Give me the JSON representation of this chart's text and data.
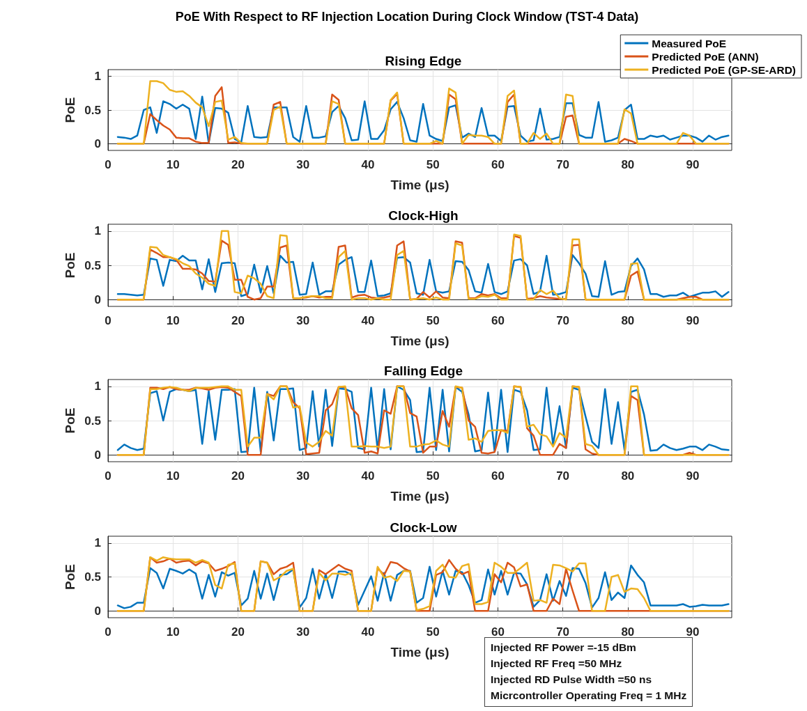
{
  "chart_data": [
    {
      "type": "line",
      "title": "PoE With Respect to RF Injection Location During Clock Window (TST-4 Data)",
      "subtitle": "Rising Edge",
      "xlabel": "Time (μs)",
      "ylabel": "PoE",
      "xlim": [
        0,
        96
      ],
      "xticks": [
        0,
        10,
        20,
        30,
        40,
        50,
        60,
        70,
        80,
        90
      ],
      "ylim": [
        -0.1,
        1.1
      ],
      "yticks": [
        0,
        0.5,
        1
      ],
      "grid": true,
      "legend": "top right",
      "x": [
        1.5,
        2.5,
        3.5,
        4.5,
        5.5,
        6.5,
        7.5,
        8.5,
        9.5,
        10.5,
        11.5,
        12.5,
        13.5,
        14.5,
        15.5,
        16.5,
        17.5,
        18.5,
        19.5,
        20.5,
        21.5,
        22.5,
        23.5,
        24.5,
        25.5,
        26.5,
        27.5,
        28.5,
        29.5,
        30.5,
        31.5,
        32.5,
        33.5,
        34.5,
        35.5,
        36.5,
        37.5,
        38.5,
        39.5,
        40.5,
        41.5,
        42.5,
        43.5,
        44.5,
        45.5,
        46.5,
        47.5,
        48.5,
        49.5,
        50.5,
        51.5,
        52.5,
        53.5,
        54.5,
        55.5,
        56.5,
        57.5,
        58.5,
        59.5,
        60.5,
        61.5,
        62.5,
        63.5,
        64.5,
        65.5,
        66.5,
        67.5,
        68.5,
        69.5,
        70.5,
        71.5,
        72.5,
        73.5,
        74.5,
        75.5,
        76.5,
        77.5,
        78.5,
        79.5,
        80.5,
        81.5,
        82.5,
        83.5,
        84.5,
        85.5,
        86.5,
        87.5,
        88.5,
        89.5,
        90.5,
        91.5,
        92.5,
        93.5,
        94.5,
        95.5
      ],
      "series": [
        {
          "name": "Measured PoE",
          "color": "#0072bd",
          "values": [
            0.1,
            0.09,
            0.07,
            0.12,
            0.5,
            0.54,
            0.16,
            0.63,
            0.59,
            0.52,
            0.58,
            0.52,
            0.07,
            0.7,
            0.01,
            0.53,
            0.52,
            0.46,
            0.07,
            0.02,
            0.56,
            0.1,
            0.09,
            0.1,
            0.54,
            0.54,
            0.54,
            0.1,
            0.03,
            0.56,
            0.09,
            0.09,
            0.11,
            0.47,
            0.56,
            0.38,
            0.05,
            0.06,
            0.63,
            0.07,
            0.07,
            0.2,
            0.51,
            0.62,
            0.38,
            0.05,
            0.03,
            0.59,
            0.12,
            0.07,
            0.04,
            0.54,
            0.57,
            0.09,
            0.15,
            0.1,
            0.53,
            0.12,
            0.12,
            0.04,
            0.55,
            0.56,
            0.12,
            0.03,
            0.05,
            0.52,
            0.06,
            0.07,
            0.1,
            0.6,
            0.6,
            0.13,
            0.09,
            0.09,
            0.62,
            0.03,
            0.05,
            0.09,
            0.5,
            0.58,
            0.07,
            0.07,
            0.12,
            0.1,
            0.12,
            0.06,
            0.09,
            0.12,
            0.12,
            0.09,
            0.03,
            0.12,
            0.06,
            0.1,
            0.12
          ]
        },
        {
          "name": "Predicted PoE (ANN)",
          "color": "#d95319",
          "values": [
            0,
            0,
            0,
            0,
            0,
            0.44,
            0.35,
            0.27,
            0.21,
            0.09,
            0.08,
            0.08,
            0.03,
            0.01,
            0.01,
            0.71,
            0.84,
            0.01,
            0.02,
            0,
            0,
            0,
            0,
            0,
            0.58,
            0.62,
            0,
            0,
            0,
            0,
            0,
            0,
            0,
            0.73,
            0.65,
            0,
            0,
            0,
            0,
            0,
            0,
            0,
            0.64,
            0.74,
            0,
            0,
            0,
            0,
            0,
            0,
            0,
            0.73,
            0.66,
            0,
            0,
            0,
            0,
            0,
            0,
            0,
            0.62,
            0.73,
            0,
            0,
            0,
            0,
            0,
            0,
            0,
            0.4,
            0.42,
            0,
            0,
            0,
            0,
            0,
            0,
            0,
            0.07,
            0.04,
            0,
            0,
            0,
            0,
            0,
            0,
            0,
            0,
            0,
            0,
            0,
            0,
            0,
            0,
            0
          ]
        },
        {
          "name": "Predicted PoE (GP-SE-ARD)",
          "color": "#edb120",
          "values": [
            0,
            0,
            0,
            0,
            0,
            0.93,
            0.93,
            0.9,
            0.8,
            0.77,
            0.78,
            0.71,
            0.61,
            0.54,
            0.26,
            0.62,
            0.64,
            0.06,
            0.1,
            0.01,
            0,
            0,
            0,
            0,
            0.5,
            0.55,
            0,
            0,
            0,
            0,
            0,
            0,
            0,
            0.63,
            0.59,
            0,
            0,
            0,
            0,
            0,
            0,
            0,
            0.65,
            0.76,
            0,
            0,
            0,
            0,
            0,
            0.04,
            0,
            0.82,
            0.76,
            0,
            0.13,
            0.12,
            0.12,
            0.1,
            0,
            0,
            0.71,
            0.79,
            0,
            0,
            0.16,
            0.07,
            0.15,
            0,
            0,
            0.73,
            0.71,
            0,
            0,
            0,
            0,
            0,
            0,
            0,
            0.51,
            0.45,
            0,
            0,
            0,
            0,
            0,
            0,
            0,
            0.16,
            0.12,
            0,
            0,
            0,
            0,
            0,
            0
          ]
        }
      ]
    },
    {
      "type": "line",
      "subtitle": "Clock-High",
      "xlabel": "Time (μs)",
      "ylabel": "PoE",
      "xlim": [
        0,
        96
      ],
      "xticks": [
        0,
        10,
        20,
        30,
        40,
        50,
        60,
        70,
        80,
        90
      ],
      "ylim": [
        -0.1,
        1.1
      ],
      "yticks": [
        0,
        0.5,
        1
      ],
      "grid": true,
      "x": [
        1.5,
        2.5,
        3.5,
        4.5,
        5.5,
        6.5,
        7.5,
        8.5,
        9.5,
        10.5,
        11.5,
        12.5,
        13.5,
        14.5,
        15.5,
        16.5,
        17.5,
        18.5,
        19.5,
        20.5,
        21.5,
        22.5,
        23.5,
        24.5,
        25.5,
        26.5,
        27.5,
        28.5,
        29.5,
        30.5,
        31.5,
        32.5,
        33.5,
        34.5,
        35.5,
        36.5,
        37.5,
        38.5,
        39.5,
        40.5,
        41.5,
        42.5,
        43.5,
        44.5,
        45.5,
        46.5,
        47.5,
        48.5,
        49.5,
        50.5,
        51.5,
        52.5,
        53.5,
        54.5,
        55.5,
        56.5,
        57.5,
        58.5,
        59.5,
        60.5,
        61.5,
        62.5,
        63.5,
        64.5,
        65.5,
        66.5,
        67.5,
        68.5,
        69.5,
        70.5,
        71.5,
        72.5,
        73.5,
        74.5,
        75.5,
        76.5,
        77.5,
        78.5,
        79.5,
        80.5,
        81.5,
        82.5,
        83.5,
        84.5,
        85.5,
        86.5,
        87.5,
        88.5,
        89.5,
        90.5,
        91.5,
        92.5,
        93.5,
        94.5,
        95.5
      ],
      "series": [
        {
          "color": "#0072bd",
          "values": [
            0.08,
            0.08,
            0.07,
            0.06,
            0.07,
            0.6,
            0.58,
            0.2,
            0.58,
            0.56,
            0.64,
            0.57,
            0.57,
            0.15,
            0.59,
            0.11,
            0.53,
            0.54,
            0.53,
            0.05,
            0.08,
            0.51,
            0.1,
            0.49,
            0.09,
            0.64,
            0.54,
            0.55,
            0.07,
            0.08,
            0.54,
            0.07,
            0.12,
            0.12,
            0.51,
            0.58,
            0.62,
            0.11,
            0.11,
            0.57,
            0.05,
            0.06,
            0.09,
            0.61,
            0.62,
            0.54,
            0.09,
            0.07,
            0.58,
            0.12,
            0.1,
            0.12,
            0.56,
            0.55,
            0.43,
            0.12,
            0.1,
            0.52,
            0.11,
            0.08,
            0.12,
            0.57,
            0.59,
            0.5,
            0.08,
            0.12,
            0.64,
            0.07,
            0.08,
            0.11,
            0.65,
            0.53,
            0.38,
            0.05,
            0.04,
            0.56,
            0.07,
            0.11,
            0.12,
            0.49,
            0.6,
            0.44,
            0.08,
            0.08,
            0.04,
            0.06,
            0.06,
            0.1,
            0.04,
            0.07,
            0.1,
            0.1,
            0.12,
            0.04,
            0.11
          ]
        },
        {
          "color": "#d95319",
          "values": [
            0,
            0,
            0,
            0,
            0,
            0.73,
            0.68,
            0.62,
            0.62,
            0.58,
            0.45,
            0.45,
            0.44,
            0.38,
            0.27,
            0.26,
            0.86,
            0.8,
            0.29,
            0.29,
            0.04,
            0,
            0.02,
            0.19,
            0.19,
            0.76,
            0.79,
            0.02,
            0.02,
            0.03,
            0.05,
            0.03,
            0.04,
            0.04,
            0.77,
            0.79,
            0.03,
            0.06,
            0.07,
            0.03,
            0.02,
            0.03,
            0.05,
            0.79,
            0.85,
            0,
            0.01,
            0.11,
            0.03,
            0.12,
            0.03,
            0.02,
            0.85,
            0.83,
            0.02,
            0.02,
            0.08,
            0.06,
            0.08,
            0.02,
            0.02,
            0.93,
            0.9,
            0.01,
            0.02,
            0.05,
            0.03,
            0.02,
            0.01,
            0.01,
            0.79,
            0.8,
            0,
            0,
            0,
            0,
            0,
            0,
            0,
            0.35,
            0.41,
            0,
            0,
            0,
            0,
            0,
            0,
            0.02,
            0.04,
            0.04,
            0,
            0,
            0,
            0,
            0
          ]
        },
        {
          "color": "#edb120",
          "values": [
            0,
            0,
            0,
            0,
            0,
            0.77,
            0.76,
            0.65,
            0.62,
            0.59,
            0.53,
            0.49,
            0.38,
            0.32,
            0.23,
            0.2,
            1,
            1,
            0.11,
            0.09,
            0.35,
            0.31,
            0.23,
            0.05,
            0.02,
            0.94,
            0.93,
            0.02,
            0.02,
            0.04,
            0.05,
            0.05,
            0.02,
            0.02,
            0.62,
            0.71,
            0,
            0.02,
            0.02,
            0,
            0.02,
            0,
            0,
            0.65,
            0.71,
            0,
            0.01,
            0.02,
            0,
            0.03,
            0,
            0,
            0.82,
            0.79,
            0.01,
            0.01,
            0.05,
            0.04,
            0.07,
            0,
            0,
            0.95,
            0.93,
            0,
            0,
            0.14,
            0.08,
            0.13,
            0.02,
            0,
            0.88,
            0.88,
            0,
            0,
            0,
            0,
            0,
            0,
            0,
            0.52,
            0.53,
            0,
            0,
            0,
            0,
            0,
            0,
            0,
            0,
            0,
            0,
            0,
            0,
            0,
            0
          ]
        }
      ]
    },
    {
      "type": "line",
      "subtitle": "Falling Edge",
      "xlabel": "Time (μs)",
      "ylabel": "PoE",
      "xlim": [
        0,
        96
      ],
      "xticks": [
        0,
        10,
        20,
        30,
        40,
        50,
        60,
        70,
        80,
        90
      ],
      "ylim": [
        -0.1,
        1.1
      ],
      "yticks": [
        0,
        0.5,
        1
      ],
      "grid": true,
      "x": [
        1.5,
        2.5,
        3.5,
        4.5,
        5.5,
        6.5,
        7.5,
        8.5,
        9.5,
        10.5,
        11.5,
        12.5,
        13.5,
        14.5,
        15.5,
        16.5,
        17.5,
        18.5,
        19.5,
        20.5,
        21.5,
        22.5,
        23.5,
        24.5,
        25.5,
        26.5,
        27.5,
        28.5,
        29.5,
        30.5,
        31.5,
        32.5,
        33.5,
        34.5,
        35.5,
        36.5,
        37.5,
        38.5,
        39.5,
        40.5,
        41.5,
        42.5,
        43.5,
        44.5,
        45.5,
        46.5,
        47.5,
        48.5,
        49.5,
        50.5,
        51.5,
        52.5,
        53.5,
        54.5,
        55.5,
        56.5,
        57.5,
        58.5,
        59.5,
        60.5,
        61.5,
        62.5,
        63.5,
        64.5,
        65.5,
        66.5,
        67.5,
        68.5,
        69.5,
        70.5,
        71.5,
        72.5,
        73.5,
        74.5,
        75.5,
        76.5,
        77.5,
        78.5,
        79.5,
        80.5,
        81.5,
        82.5,
        83.5,
        84.5,
        85.5,
        86.5,
        87.5,
        88.5,
        89.5,
        90.5,
        91.5,
        92.5,
        93.5,
        94.5,
        95.5
      ],
      "series": [
        {
          "color": "#0072bd",
          "values": [
            0.07,
            0.15,
            0.1,
            0.07,
            0.09,
            0.9,
            0.93,
            0.5,
            0.92,
            0.96,
            0.95,
            0.93,
            0.95,
            0.16,
            0.93,
            0.22,
            0.95,
            0.95,
            0.96,
            0.04,
            0.05,
            0.98,
            0.05,
            0.92,
            0.21,
            0.96,
            0.96,
            0.97,
            0.07,
            0.1,
            0.93,
            0.12,
            0.95,
            0.13,
            0.97,
            0.96,
            0.92,
            0.1,
            0.08,
            0.98,
            0.07,
            0.96,
            0.08,
            1,
            0.95,
            0.8,
            0.04,
            0.05,
            0.98,
            0.07,
            0.95,
            0.05,
            0.99,
            0.92,
            0.59,
            0.05,
            0.07,
            0.91,
            0.05,
            0.95,
            0.04,
            0.95,
            0.92,
            0.65,
            0.07,
            0.08,
            0.98,
            0.15,
            0.71,
            0.1,
            0.98,
            0.95,
            0.56,
            0.19,
            0.1,
            0.96,
            0.16,
            0.77,
            0.07,
            0.92,
            0.95,
            0.59,
            0.06,
            0.07,
            0.15,
            0.1,
            0.07,
            0.09,
            0.12,
            0.12,
            0.07,
            0.15,
            0.12,
            0.08,
            0.07
          ]
        },
        {
          "color": "#d95319",
          "values": [
            0,
            0,
            0,
            0,
            0,
            0.98,
            0.98,
            0.96,
            0.99,
            0.96,
            0.95,
            0.95,
            0.98,
            0.97,
            0.95,
            0.98,
            0.99,
            0.98,
            0.92,
            0.86,
            0,
            0,
            0,
            0.89,
            0.86,
            1,
            1,
            0.77,
            0.68,
            0.01,
            0.02,
            0.03,
            0.65,
            0.74,
            0.99,
            0.99,
            0.68,
            0.58,
            0.03,
            0.05,
            0.02,
            0.65,
            0.6,
            1,
            1,
            0.61,
            0.56,
            0.03,
            0.12,
            0.12,
            0.64,
            0.41,
            0.99,
            0.98,
            0.5,
            0.41,
            0.03,
            0.02,
            0.04,
            0.36,
            0.35,
            1,
            0.99,
            0.39,
            0.28,
            0,
            0,
            0,
            0.16,
            0.1,
            1,
            0.99,
            0.08,
            0.02,
            0,
            0,
            0,
            0,
            0,
            0.86,
            0.8,
            0,
            0,
            0,
            0,
            0,
            0,
            0,
            0.03,
            0,
            0,
            0,
            0,
            0,
            0
          ]
        },
        {
          "color": "#edb120",
          "values": [
            0,
            0,
            0,
            0,
            0,
            0.96,
            0.96,
            0.98,
            0.99,
            0.98,
            0.95,
            0.93,
            0.98,
            0.98,
            0.98,
            0.99,
            1,
            1,
            0.95,
            0.95,
            0.12,
            0.25,
            0.25,
            0.89,
            0.81,
            1,
            1,
            0.69,
            0.71,
            0.18,
            0.12,
            0.19,
            0.35,
            0.28,
            0.99,
            1,
            0.12,
            0.12,
            0.13,
            0.12,
            0.12,
            0.1,
            0.12,
            1,
            1,
            0.12,
            0.12,
            0.15,
            0.16,
            0.21,
            0.15,
            0.12,
            1,
            0.98,
            0.22,
            0.24,
            0.19,
            0.35,
            0.36,
            0.36,
            0.32,
            1,
            0.99,
            0.41,
            0.44,
            0.3,
            0.27,
            0.12,
            0.32,
            0.25,
            1,
            0.99,
            0.16,
            0.13,
            0,
            0,
            0,
            0,
            0,
            1,
            1,
            0,
            0,
            0,
            0,
            0,
            0,
            0,
            0,
            0,
            0,
            0,
            0,
            0,
            0
          ]
        }
      ]
    },
    {
      "type": "line",
      "subtitle": "Clock-Low",
      "xlabel": "Time (μs)",
      "ylabel": "PoE",
      "xlim": [
        0,
        96
      ],
      "xticks": [
        0,
        10,
        20,
        30,
        40,
        50,
        60,
        70,
        80,
        90
      ],
      "ylim": [
        -0.1,
        1.1
      ],
      "yticks": [
        0,
        0.5,
        1
      ],
      "grid": true,
      "annotations": [
        "Injected RF Power =-15 dBm",
        "Injected RF Freq =50 MHz",
        "Injected RD Pulse Width =50 ns",
        "Micrcontroller Operating Freq = 1 MHz"
      ],
      "x": [
        1.5,
        2.5,
        3.5,
        4.5,
        5.5,
        6.5,
        7.5,
        8.5,
        9.5,
        10.5,
        11.5,
        12.5,
        13.5,
        14.5,
        15.5,
        16.5,
        17.5,
        18.5,
        19.5,
        20.5,
        21.5,
        22.5,
        23.5,
        24.5,
        25.5,
        26.5,
        27.5,
        28.5,
        29.5,
        30.5,
        31.5,
        32.5,
        33.5,
        34.5,
        35.5,
        36.5,
        37.5,
        38.5,
        39.5,
        40.5,
        41.5,
        42.5,
        43.5,
        44.5,
        45.5,
        46.5,
        47.5,
        48.5,
        49.5,
        50.5,
        51.5,
        52.5,
        53.5,
        54.5,
        55.5,
        56.5,
        57.5,
        58.5,
        59.5,
        60.5,
        61.5,
        62.5,
        63.5,
        64.5,
        65.5,
        66.5,
        67.5,
        68.5,
        69.5,
        70.5,
        71.5,
        72.5,
        73.5,
        74.5,
        75.5,
        76.5,
        77.5,
        78.5,
        79.5,
        80.5,
        81.5,
        82.5,
        83.5,
        84.5,
        85.5,
        86.5,
        87.5,
        88.5,
        89.5,
        90.5,
        91.5,
        92.5,
        93.5,
        94.5,
        95.5
      ],
      "series": [
        {
          "color": "#0072bd",
          "values": [
            0.08,
            0.04,
            0.06,
            0.12,
            0.12,
            0.63,
            0.56,
            0.33,
            0.62,
            0.59,
            0.55,
            0.61,
            0.55,
            0.18,
            0.53,
            0.21,
            0.57,
            0.52,
            0.56,
            0.08,
            0.18,
            0.59,
            0.18,
            0.55,
            0.16,
            0.53,
            0.54,
            0.61,
            0.05,
            0.19,
            0.62,
            0.18,
            0.54,
            0.19,
            0.58,
            0.58,
            0.53,
            0.09,
            0.3,
            0.51,
            0.15,
            0.56,
            0.15,
            0.53,
            0.59,
            0.59,
            0.12,
            0.19,
            0.65,
            0.21,
            0.59,
            0.24,
            0.59,
            0.57,
            0.38,
            0.12,
            0.16,
            0.61,
            0.24,
            0.59,
            0.24,
            0.56,
            0.55,
            0.39,
            0.06,
            0.16,
            0.54,
            0.15,
            0.44,
            0.22,
            0.63,
            0.62,
            0.41,
            0.05,
            0.19,
            0.57,
            0.16,
            0.27,
            0.19,
            0.67,
            0.53,
            0.42,
            0.08,
            0.08,
            0.08,
            0.08,
            0.08,
            0.1,
            0.06,
            0.07,
            0.09,
            0.08,
            0.08,
            0.08,
            0.1
          ]
        },
        {
          "color": "#d95319",
          "values": [
            0,
            0,
            0,
            0,
            0,
            0.79,
            0.71,
            0.73,
            0.77,
            0.71,
            0.73,
            0.74,
            0.67,
            0.73,
            0.7,
            0.59,
            0.62,
            0.66,
            0.72,
            0,
            0,
            0,
            0.73,
            0.71,
            0.54,
            0.62,
            0.65,
            0.71,
            0,
            0,
            0,
            0.6,
            0.54,
            0.61,
            0.68,
            0.62,
            0.59,
            0,
            0,
            0,
            0.63,
            0.53,
            0.72,
            0.7,
            0.63,
            0.58,
            0,
            0,
            0,
            0.53,
            0.57,
            0.75,
            0.62,
            0.54,
            0.58,
            0,
            0,
            0,
            0.54,
            0.42,
            0.71,
            0.64,
            0.36,
            0.39,
            0,
            0,
            0,
            0.18,
            0.1,
            0.62,
            0.3,
            0,
            0,
            0,
            0,
            0,
            0,
            0,
            0,
            0,
            0,
            0,
            0,
            0,
            0,
            0,
            0,
            0,
            0,
            0,
            0,
            0,
            0,
            0,
            0
          ]
        },
        {
          "color": "#edb120",
          "values": [
            0,
            0,
            0,
            0,
            0,
            0.79,
            0.74,
            0.79,
            0.77,
            0.76,
            0.76,
            0.76,
            0.71,
            0.75,
            0.71,
            0.38,
            0.33,
            0.68,
            0.7,
            0,
            0,
            0,
            0.73,
            0.71,
            0.45,
            0.5,
            0.59,
            0.62,
            0,
            0,
            0,
            0.56,
            0.45,
            0.55,
            0.55,
            0.53,
            0.56,
            0,
            0,
            0,
            0.65,
            0.49,
            0.51,
            0.44,
            0.59,
            0.58,
            0.01,
            0.03,
            0.07,
            0.59,
            0.68,
            0.5,
            0.49,
            0.66,
            0.69,
            0.1,
            0.1,
            0.13,
            0.71,
            0.65,
            0.56,
            0.56,
            0.63,
            0.71,
            0.15,
            0.16,
            0.12,
            0.68,
            0.67,
            0.63,
            0.58,
            0.7,
            0.7,
            0,
            0,
            0,
            0.5,
            0.53,
            0.28,
            0.33,
            0.32,
            0.19,
            0,
            0,
            0,
            0,
            0,
            0,
            0,
            0,
            0,
            0,
            0,
            0,
            0
          ]
        }
      ]
    }
  ]
}
